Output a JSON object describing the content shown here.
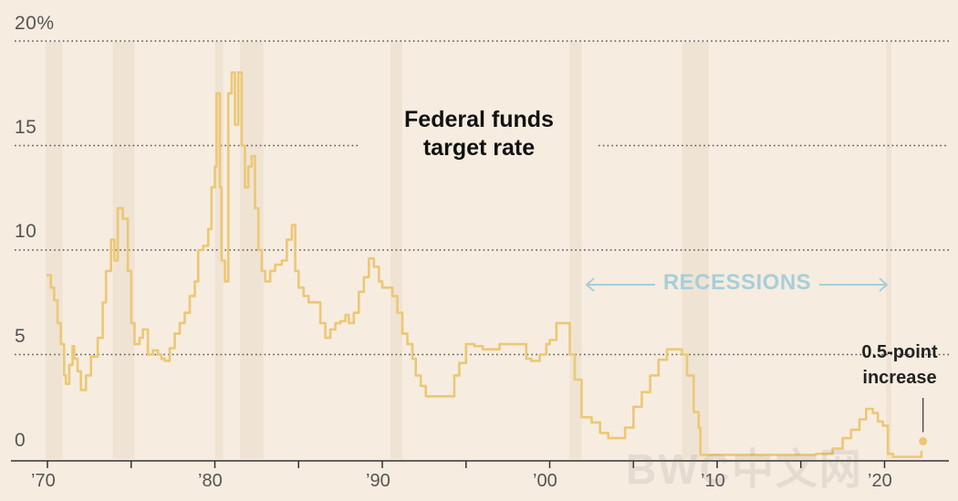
{
  "chart_data": {
    "type": "line",
    "title": "Federal funds\ntarget rate",
    "y_unit": "%",
    "ylim": [
      0,
      20
    ],
    "yticks": [
      {
        "value": 0,
        "label": "0"
      },
      {
        "value": 5,
        "label": "5"
      },
      {
        "value": 10,
        "label": "10"
      },
      {
        "value": 15,
        "label": "15"
      },
      {
        "value": 20,
        "label": "20%"
      }
    ],
    "xlim": [
      1969.8,
      2023.7
    ],
    "xticks": [
      {
        "value": 1970,
        "label": "’70"
      },
      {
        "value": 1975,
        "label": ""
      },
      {
        "value": 1980,
        "label": "’80"
      },
      {
        "value": 1985,
        "label": ""
      },
      {
        "value": 1990,
        "label": "’90"
      },
      {
        "value": 1995,
        "label": ""
      },
      {
        "value": 2000,
        "label": "’00"
      },
      {
        "value": 2005,
        "label": ""
      },
      {
        "value": 2010,
        "label": "’10"
      },
      {
        "value": 2015,
        "label": ""
      },
      {
        "value": 2020,
        "label": "’20"
      }
    ],
    "recessions": [
      [
        1969.9,
        1970.9
      ],
      [
        1973.9,
        1975.2
      ],
      [
        1980.0,
        1980.5
      ],
      [
        1981.5,
        1982.9
      ],
      [
        1990.5,
        1991.2
      ],
      [
        2001.2,
        2001.9
      ],
      [
        2007.9,
        2009.5
      ],
      [
        2020.1,
        2020.4
      ]
    ],
    "recessions_label": "RECESSIONS",
    "series": [
      {
        "name": "Federal funds target rate",
        "x": [
          1970.0,
          1970.2,
          1970.4,
          1970.6,
          1970.8,
          1971.0,
          1971.1,
          1971.3,
          1971.5,
          1971.6,
          1971.8,
          1972.0,
          1972.3,
          1972.6,
          1973.0,
          1973.3,
          1973.5,
          1973.8,
          1974.0,
          1974.2,
          1974.5,
          1974.8,
          1975.0,
          1975.2,
          1975.5,
          1975.7,
          1976.0,
          1976.3,
          1976.6,
          1976.8,
          1977.0,
          1977.3,
          1977.6,
          1977.9,
          1978.2,
          1978.5,
          1978.8,
          1979.0,
          1979.3,
          1979.6,
          1979.8,
          1980.0,
          1980.1,
          1980.3,
          1980.4,
          1980.6,
          1980.8,
          1981.0,
          1981.2,
          1981.4,
          1981.6,
          1981.8,
          1982.0,
          1982.2,
          1982.4,
          1982.6,
          1982.8,
          1983.0,
          1983.3,
          1983.6,
          1984.0,
          1984.3,
          1984.6,
          1984.8,
          1985.0,
          1985.3,
          1985.6,
          1986.0,
          1986.3,
          1986.6,
          1986.9,
          1987.2,
          1987.5,
          1987.8,
          1988.0,
          1988.3,
          1988.6,
          1988.9,
          1989.2,
          1989.5,
          1989.8,
          1990.0,
          1990.3,
          1990.6,
          1990.9,
          1991.2,
          1991.5,
          1991.8,
          1992.0,
          1992.3,
          1992.6,
          1993.0,
          1994.0,
          1994.3,
          1994.6,
          1995.0,
          1995.5,
          1996.0,
          1997.0,
          1998.0,
          1998.6,
          1998.9,
          1999.4,
          1999.8,
          2000.0,
          2000.4,
          2000.9,
          2001.2,
          2001.5,
          2001.9,
          2002.5,
          2003.0,
          2003.5,
          2004.0,
          2004.5,
          2005.0,
          2005.5,
          2006.0,
          2006.5,
          2007.0,
          2007.5,
          2007.9,
          2008.2,
          2008.6,
          2008.9,
          2009.0,
          2010.0,
          2012.0,
          2014.0,
          2015.9,
          2016.9,
          2017.5,
          2018.0,
          2018.5,
          2018.9,
          2019.3,
          2019.6,
          2019.9,
          2020.2,
          2020.5,
          2021.0,
          2021.5,
          2022.0,
          2022.2
        ],
        "y": [
          8.8,
          8.2,
          7.6,
          6.5,
          5.5,
          4.0,
          3.6,
          4.5,
          5.4,
          4.8,
          4.2,
          3.3,
          4.0,
          4.9,
          5.8,
          7.5,
          9.0,
          10.5,
          9.5,
          12.0,
          11.5,
          9.0,
          6.5,
          5.5,
          5.8,
          6.2,
          5.0,
          5.2,
          5.0,
          4.8,
          4.7,
          5.3,
          6.0,
          6.5,
          7.0,
          7.8,
          8.5,
          10.0,
          10.2,
          11.0,
          13.0,
          14.0,
          17.5,
          13.0,
          9.5,
          8.5,
          17.5,
          18.5,
          16.0,
          18.5,
          15.0,
          13.0,
          14.0,
          14.5,
          12.0,
          10.0,
          9.0,
          8.5,
          9.0,
          9.3,
          9.5,
          10.5,
          11.2,
          9.0,
          8.2,
          7.8,
          7.5,
          7.5,
          6.5,
          5.8,
          6.2,
          6.5,
          6.6,
          6.9,
          6.5,
          7.0,
          8.0,
          8.7,
          9.6,
          9.2,
          8.5,
          8.2,
          8.2,
          7.8,
          7.0,
          6.0,
          5.5,
          4.8,
          4.0,
          3.5,
          3.0,
          3.0,
          3.0,
          4.0,
          4.6,
          5.5,
          5.4,
          5.25,
          5.5,
          5.5,
          4.8,
          4.7,
          5.0,
          5.5,
          5.7,
          6.5,
          6.5,
          5.0,
          3.8,
          2.0,
          1.75,
          1.25,
          1.0,
          1.0,
          1.5,
          2.5,
          3.2,
          4.0,
          4.75,
          5.25,
          5.25,
          5.0,
          4.0,
          2.25,
          1.5,
          0.2,
          0.2,
          0.2,
          0.2,
          0.25,
          0.5,
          1.0,
          1.4,
          1.9,
          2.4,
          2.2,
          1.8,
          1.6,
          0.25,
          0.1,
          0.1,
          0.1,
          0.1,
          0.35
        ],
        "color": "#ecc874"
      }
    ],
    "annotation": {
      "x": 2022.3,
      "y": 0.85,
      "text": "0.5-point\nincrease"
    },
    "colors": {
      "background": "#f6ece0",
      "line": "#ecc874",
      "recession_band": "#efe3d4",
      "gridline": "#555555",
      "recessions_label": "#a6cfd8",
      "axis": "#333333"
    }
  },
  "watermark": "BWC中文网"
}
